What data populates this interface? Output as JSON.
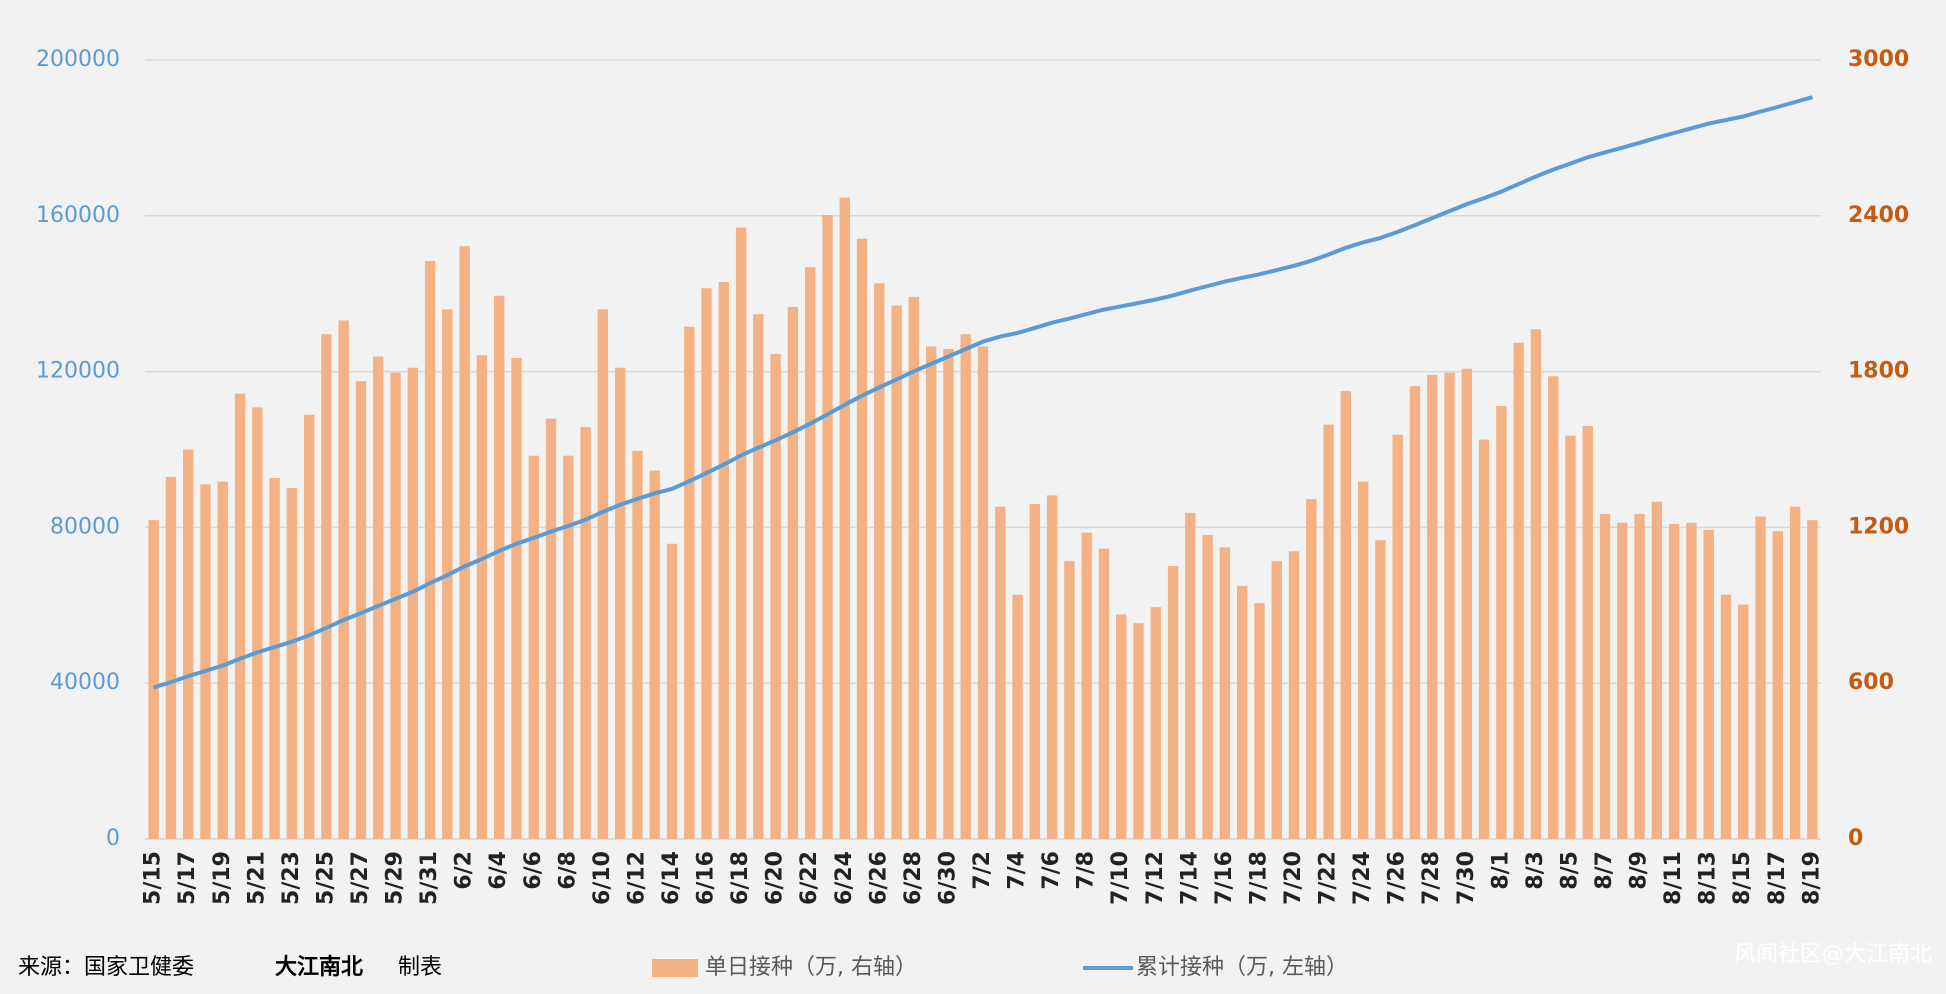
{
  "chart_data": {
    "type": "combo",
    "categories": [
      "5/15",
      null,
      "5/17",
      null,
      "5/19",
      null,
      "5/21",
      null,
      "5/23",
      null,
      "5/25",
      null,
      "5/27",
      null,
      "5/29",
      null,
      "5/31",
      null,
      "6/2",
      null,
      "6/4",
      null,
      "6/6",
      null,
      "6/8",
      null,
      "6/10",
      null,
      "6/12",
      null,
      "6/14",
      null,
      "6/16",
      null,
      "6/18",
      null,
      "6/20",
      null,
      "6/22",
      null,
      "6/24",
      null,
      "6/26",
      null,
      "6/28",
      null,
      "6/30",
      null,
      "7/2",
      null,
      "7/4",
      null,
      "7/6",
      null,
      "7/8",
      null,
      "7/10",
      null,
      "7/12",
      null,
      "7/14",
      null,
      "7/16",
      null,
      "7/18",
      null,
      "7/20",
      null,
      "7/22",
      null,
      "7/24",
      null,
      "7/26",
      null,
      "7/28",
      null,
      "7/30",
      null,
      "8/1",
      null,
      "8/3",
      null,
      "8/5",
      null,
      "8/7",
      null,
      "8/9",
      null,
      "8/11",
      null,
      "8/13",
      null,
      "8/15",
      null,
      "8/17",
      null,
      "8/19"
    ],
    "series": [
      {
        "name": "单日接种（万, 右轴）",
        "type": "bar",
        "axis": "y2",
        "color": "#f4b183",
        "values": [
          1228,
          1395,
          1500,
          1366,
          1376,
          1715,
          1662,
          1390,
          1352,
          1634,
          1944,
          1997,
          1763,
          1858,
          1796,
          1815,
          2226,
          2040,
          2283,
          1863,
          2092,
          1853,
          1476,
          1619,
          1476,
          1586,
          2040,
          1815,
          1495,
          1419,
          1137,
          1973,
          2121,
          2145,
          2355,
          2021,
          1868,
          2049,
          2202,
          2403,
          2470,
          2312,
          2140,
          2054,
          2088,
          1897,
          1887,
          1944,
          1897,
          1280,
          941,
          1290,
          1323,
          1070,
          1180,
          1118,
          865,
          831,
          893,
          1051,
          1256,
          1170,
          1123,
          975,
          908,
          1070,
          1108,
          1309,
          1596,
          1725,
          1376,
          1151,
          1557,
          1744,
          1787,
          1796,
          1811,
          1538,
          1667,
          1911,
          1963,
          1782,
          1553,
          1591,
          1252,
          1218,
          1252,
          1299,
          1213,
          1218,
          1190,
          941,
          903,
          1242,
          1185,
          1280,
          1228
        ]
      },
      {
        "name": "累计接种（万, 左轴）",
        "type": "line",
        "axis": "y",
        "color": "#5b9bd5",
        "values": [
          38900,
          40295,
          41795,
          43161,
          44537,
          46252,
          47914,
          49304,
          50656,
          52290,
          54234,
          56231,
          57994,
          59852,
          61648,
          63463,
          65689,
          67729,
          70012,
          71875,
          73967,
          75820,
          77296,
          78915,
          80391,
          81977,
          84017,
          85832,
          87327,
          88746,
          89883,
          91856,
          93977,
          96122,
          98477,
          100498,
          102366,
          104415,
          106617,
          109020,
          111490,
          113802,
          115942,
          117996,
          120084,
          121981,
          123868,
          125812,
          127709,
          128989,
          129930,
          131220,
          132543,
          133613,
          134793,
          135911,
          136776,
          137607,
          138500,
          139551,
          140807,
          141977,
          143100,
          144075,
          144983,
          146053,
          147161,
          148470,
          150066,
          151791,
          153167,
          154318,
          155875,
          157619,
          159406,
          161202,
          163013,
          164551,
          166218,
          168129,
          170092,
          171874,
          173427,
          175018,
          176270,
          177488,
          178740,
          180039,
          181252,
          182470,
          183660,
          184601,
          185504,
          186746,
          187931,
          189211,
          190439
        ]
      }
    ],
    "ylim": [
      0,
      200000
    ],
    "yticks": [
      0,
      40000,
      80000,
      120000,
      160000,
      200000
    ],
    "ycolor": "#5b9bd5",
    "y2lim": [
      0,
      3000
    ],
    "y2ticks": [
      0,
      600,
      1200,
      1800,
      2400,
      3000
    ],
    "y2color": "#c55a11",
    "grid": true,
    "source": {
      "label": "来源：国家卫健委",
      "author": "大江南北",
      "suffix": "制表"
    },
    "watermark": "风闻社区@大江南北"
  }
}
